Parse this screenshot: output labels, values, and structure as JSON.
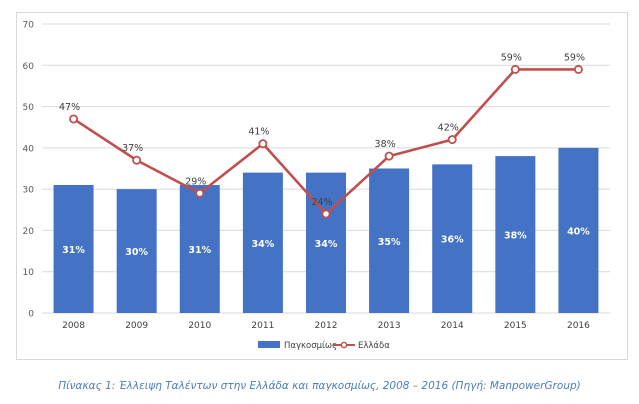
{
  "chart_data": {
    "type": "bar",
    "categories": [
      "2008",
      "2009",
      "2010",
      "2011",
      "2012",
      "2013",
      "2014",
      "2015",
      "2016"
    ],
    "series": [
      {
        "name": "Παγκοσμίως",
        "type": "bar",
        "values": [
          31,
          30,
          31,
          34,
          34,
          35,
          36,
          38,
          40
        ],
        "labels": [
          "31%",
          "30%",
          "31%",
          "34%",
          "34%",
          "35%",
          "36%",
          "38%",
          "40%"
        ],
        "color": "#4472c4"
      },
      {
        "name": "Ελλάδα",
        "type": "line",
        "values": [
          47,
          37,
          29,
          41,
          24,
          38,
          42,
          59,
          59
        ],
        "labels": [
          "47%",
          "37%",
          "29%",
          "41%",
          "24%",
          "38%",
          "42%",
          "59%",
          "59%"
        ],
        "color": "#c0504d"
      }
    ],
    "ylim": [
      0,
      70
    ],
    "yticks": [
      0,
      10,
      20,
      30,
      40,
      50,
      60,
      70
    ],
    "grid": true,
    "legend": "bottom"
  },
  "caption": "Πίνακας 1: Έλλειψη Ταλέντων στην Ελλάδα και παγκοσμίως, 2008 – 2016 (Πηγή: ManpowerGroup)"
}
